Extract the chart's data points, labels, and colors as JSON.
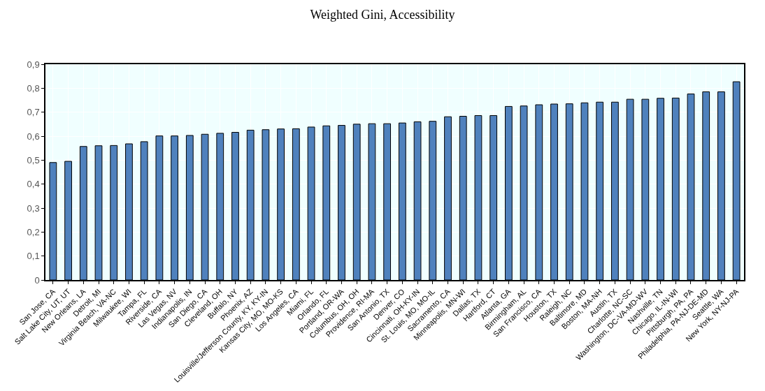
{
  "chart_data": {
    "type": "bar",
    "title": "Weighted Gini, Accessibility",
    "categories": [
      "San Jose, CA",
      "Salt Lake City, UT, UT",
      "New Orleans, LA",
      "Detroit, MI",
      "Virginia Beach, VA-NC",
      "Milwaukee, WI",
      "Tampa, FL",
      "Riverside, CA",
      "Las Vegas, NV",
      "Indianapolis, IN",
      "San Diego, CA",
      "Cleveland, OH",
      "Buffalo, NY",
      "Phoenix, AZ",
      "Louisville/Jefferson County, KY, KY-IN",
      "Kansas City, MO, MO-KS",
      "Los Angeles, CA",
      "Miami, FL",
      "Orlando, FL",
      "Portland, OR-WA",
      "Columbus, OH, OH",
      "Providence, RI-MA",
      "San Antonio, TX",
      "Denver, CO",
      "Cincinnati, OH-KY-IN",
      "St. Louis, MO, MO-IL",
      "Sacramento, CA",
      "Minneapolis, MN-WI",
      "Dallas, TX",
      "Hartford, CT",
      "Atlanta, GA",
      "Birmingham, AL",
      "San Francisco, CA",
      "Houston, TX",
      "Raleigh, NC",
      "Baltimore, MD",
      "Boston, MA-NH",
      "Austin, TX",
      "Charlotte, NC-SC",
      "Washington, DC-VA-MD-WV",
      "Nashville, TN",
      "Chicago, IL-IN-WI",
      "Pittsburgh, PA, PA",
      "Philadelphia, PA-NJ-DE-MD",
      "Seattle, WA",
      "New York, NY-NJ-PA"
    ],
    "values": [
      0.49,
      0.495,
      0.557,
      0.56,
      0.561,
      0.568,
      0.577,
      0.601,
      0.601,
      0.603,
      0.608,
      0.612,
      0.616,
      0.625,
      0.627,
      0.63,
      0.631,
      0.638,
      0.643,
      0.645,
      0.65,
      0.652,
      0.652,
      0.655,
      0.66,
      0.662,
      0.681,
      0.683,
      0.686,
      0.686,
      0.724,
      0.726,
      0.731,
      0.734,
      0.735,
      0.739,
      0.742,
      0.742,
      0.754,
      0.754,
      0.758,
      0.759,
      0.776,
      0.785,
      0.785,
      0.827
    ],
    "color": "#4f81bd",
    "ylim": [
      0,
      0.9
    ],
    "yticks": [
      {
        "value": 0,
        "label": "0"
      },
      {
        "value": 0.1,
        "label": "0,1"
      },
      {
        "value": 0.2,
        "label": "0,2"
      },
      {
        "value": 0.3,
        "label": "0,3"
      },
      {
        "value": 0.4,
        "label": "0,4"
      },
      {
        "value": 0.5,
        "label": "0,5"
      },
      {
        "value": 0.6,
        "label": "0,6"
      },
      {
        "value": 0.7,
        "label": "0,7"
      },
      {
        "value": 0.8,
        "label": "0,8"
      },
      {
        "value": 0.9,
        "label": "0,9"
      }
    ],
    "grid": true
  }
}
